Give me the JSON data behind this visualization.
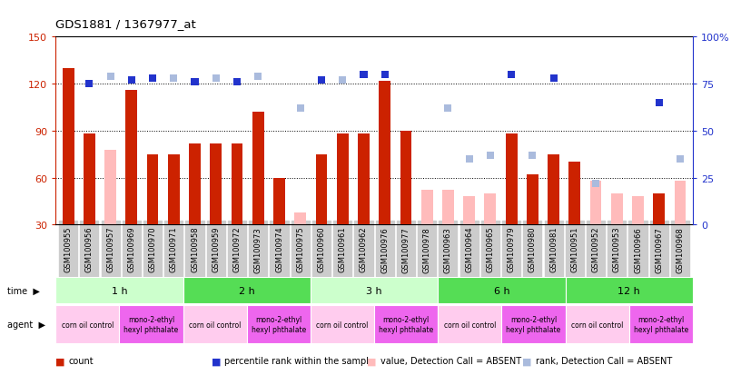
{
  "title": "GDS1881 / 1367977_at",
  "samples": [
    "GSM100955",
    "GSM100956",
    "GSM100957",
    "GSM100969",
    "GSM100970",
    "GSM100971",
    "GSM100958",
    "GSM100959",
    "GSM100972",
    "GSM100973",
    "GSM100974",
    "GSM100975",
    "GSM100960",
    "GSM100961",
    "GSM100962",
    "GSM100976",
    "GSM100977",
    "GSM100978",
    "GSM100963",
    "GSM100964",
    "GSM100965",
    "GSM100979",
    "GSM100980",
    "GSM100981",
    "GSM100951",
    "GSM100952",
    "GSM100953",
    "GSM100966",
    "GSM100967",
    "GSM100968"
  ],
  "count_present": [
    130,
    88,
    null,
    116,
    75,
    75,
    82,
    82,
    82,
    102,
    60,
    null,
    75,
    88,
    88,
    122,
    90,
    null,
    null,
    null,
    null,
    88,
    62,
    75,
    70,
    null,
    null,
    null,
    50,
    null
  ],
  "count_absent": [
    null,
    null,
    78,
    null,
    null,
    null,
    null,
    null,
    null,
    null,
    null,
    38,
    null,
    null,
    null,
    null,
    null,
    52,
    52,
    48,
    50,
    null,
    null,
    null,
    null,
    58,
    50,
    48,
    null,
    58
  ],
  "rank_present": [
    null,
    75,
    null,
    77,
    78,
    null,
    76,
    null,
    76,
    null,
    null,
    null,
    77,
    null,
    80,
    80,
    null,
    null,
    null,
    null,
    null,
    80,
    null,
    78,
    null,
    null,
    null,
    null,
    65,
    null
  ],
  "rank_absent": [
    null,
    null,
    79,
    null,
    null,
    78,
    null,
    78,
    null,
    79,
    null,
    62,
    null,
    77,
    null,
    null,
    null,
    null,
    62,
    35,
    37,
    null,
    37,
    null,
    null,
    22,
    null,
    null,
    null,
    35
  ],
  "time_groups": [
    {
      "label": "1 h",
      "start": 0,
      "end": 6
    },
    {
      "label": "2 h",
      "start": 6,
      "end": 12
    },
    {
      "label": "3 h",
      "start": 12,
      "end": 18
    },
    {
      "label": "6 h",
      "start": 18,
      "end": 24
    },
    {
      "label": "12 h",
      "start": 24,
      "end": 30
    }
  ],
  "agent_groups": [
    {
      "label": "corn oil control",
      "start": 0,
      "end": 3
    },
    {
      "label": "mono-2-ethyl\nhexyl phthalate",
      "start": 3,
      "end": 6
    },
    {
      "label": "corn oil control",
      "start": 6,
      "end": 9
    },
    {
      "label": "mono-2-ethyl\nhexyl phthalate",
      "start": 9,
      "end": 12
    },
    {
      "label": "corn oil control",
      "start": 12,
      "end": 15
    },
    {
      "label": "mono-2-ethyl\nhexyl phthalate",
      "start": 15,
      "end": 18
    },
    {
      "label": "corn oil control",
      "start": 18,
      "end": 21
    },
    {
      "label": "mono-2-ethyl\nhexyl phthalate",
      "start": 21,
      "end": 24
    },
    {
      "label": "corn oil control",
      "start": 24,
      "end": 27
    },
    {
      "label": "mono-2-ethyl\nhexyl phthalate",
      "start": 27,
      "end": 30
    }
  ],
  "ylim_left": [
    30,
    150
  ],
  "ylim_right": [
    0,
    100
  ],
  "yticks_left": [
    30,
    60,
    90,
    120,
    150
  ],
  "yticks_right": [
    0,
    25,
    50,
    75,
    100
  ],
  "bar_width": 0.55,
  "color_count_present": "#cc2200",
  "color_count_absent": "#ffbbbb",
  "color_rank_present": "#2233cc",
  "color_rank_absent": "#aabbdd",
  "time_row_color_light": "#ccffcc",
  "time_row_color_dark": "#55dd55",
  "agent_corn_color": "#ffccee",
  "agent_mono_color": "#ee66ee",
  "xticklabel_bg": "#cccccc"
}
